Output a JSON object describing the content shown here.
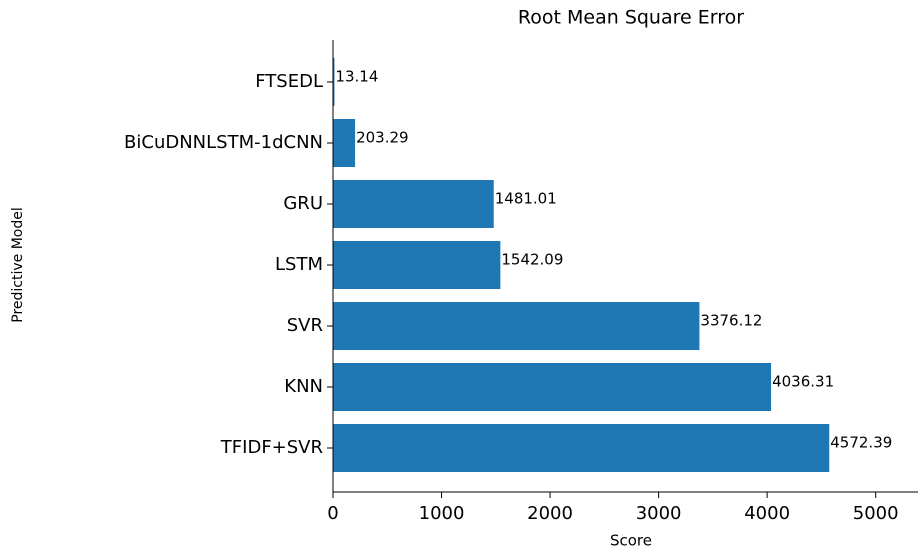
{
  "chart_data": {
    "type": "barh",
    "title": "Root Mean Square Error",
    "xlabel": "Score",
    "ylabel": "Predictive Model",
    "categories": [
      "FTSEDL",
      "BiCuDNNLSTM-1dCNN",
      "GRU",
      "LSTM",
      "SVR",
      "KNN",
      "TFIDF+SVR"
    ],
    "values": [
      13.14,
      203.29,
      1481.01,
      1542.09,
      3376.12,
      4036.31,
      4572.39
    ],
    "color": "#1f77b4",
    "xlim": [
      0,
      5390
    ],
    "xticks": [
      0,
      1000,
      2000,
      3000,
      4000,
      5000
    ]
  }
}
